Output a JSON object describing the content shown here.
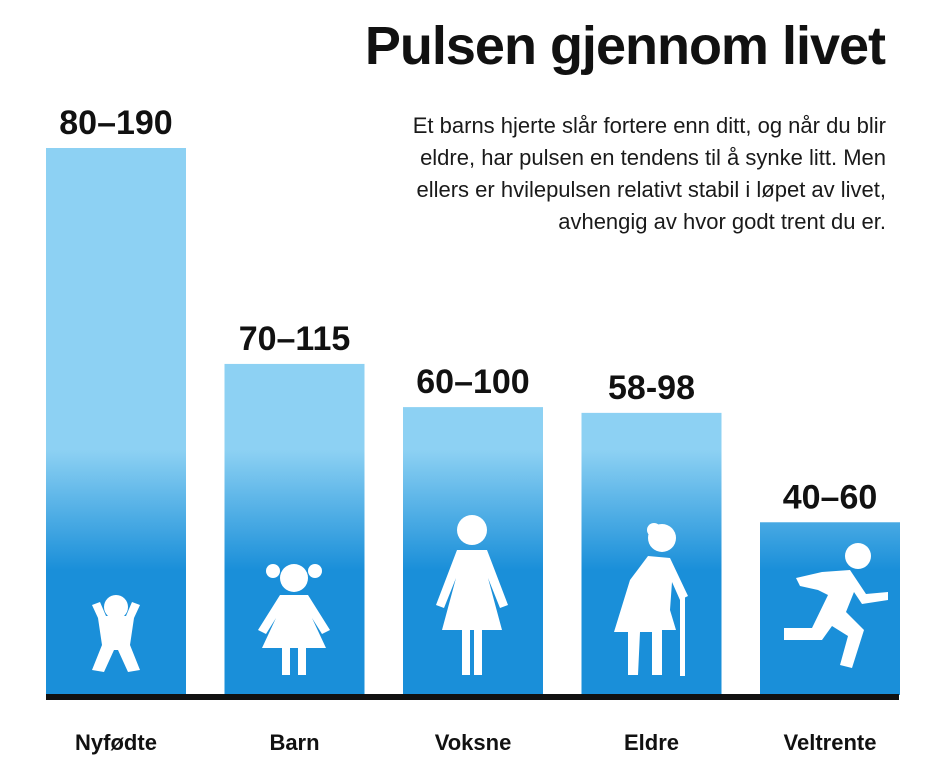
{
  "chart_data": {
    "type": "bar",
    "title": "Pulsen gjennom livet",
    "subtitle": [
      "Et barns hjerte slår fortere enn ditt, og når du blir",
      "eldre, har pulsen en tendens til å synke litt. Men",
      "ellers er hvilepulsen relativt stabil i løpet av livet,",
      "avhengig av hvor godt trent du er."
    ],
    "categories": [
      "Nyfødte",
      "Barn",
      "Voksne",
      "Eldre",
      "Veltrente"
    ],
    "values": [
      190,
      115,
      100,
      98,
      60
    ],
    "value_labels": [
      "80–190",
      "70–115",
      "60–100",
      "58-98",
      "40–60"
    ],
    "ylim": [
      0,
      190
    ],
    "color": [
      "#8dd1f3",
      "#1a8fd9"
    ]
  }
}
